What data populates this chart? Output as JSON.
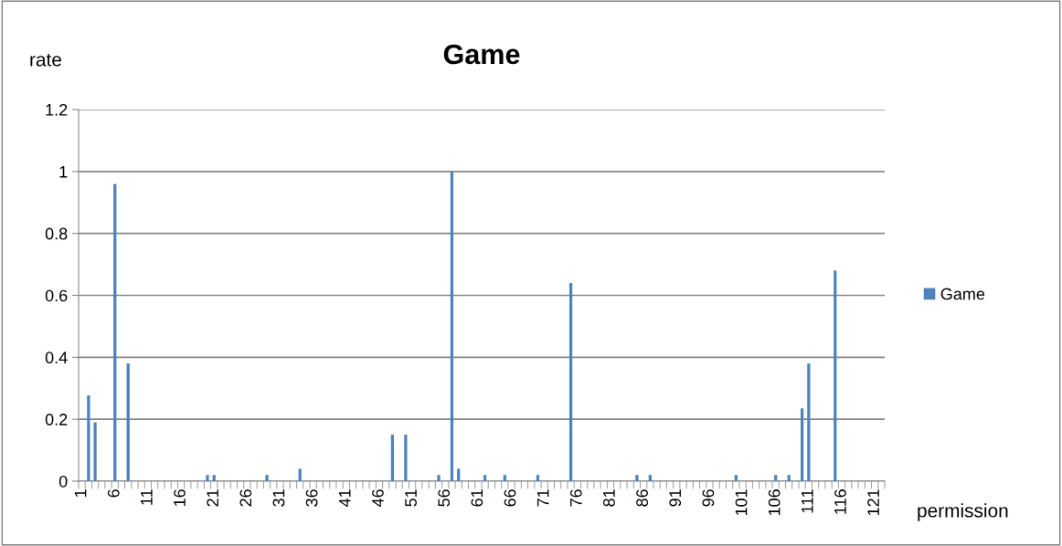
{
  "chart_data": {
    "type": "bar",
    "title": "Game",
    "xlabel": "permission",
    "ylabel": "rate",
    "categories": [
      "1",
      null,
      null,
      null,
      null,
      "6",
      null,
      null,
      null,
      null,
      "11",
      null,
      null,
      null,
      null,
      "16",
      null,
      null,
      null,
      null,
      "21",
      null,
      null,
      null,
      null,
      "26",
      null,
      null,
      null,
      null,
      "31",
      null,
      null,
      null,
      null,
      "36",
      null,
      null,
      null,
      null,
      "41",
      null,
      null,
      null,
      null,
      "46",
      null,
      null,
      null,
      null,
      "51",
      null,
      null,
      null,
      null,
      "56",
      null,
      null,
      null,
      null,
      "61",
      null,
      null,
      null,
      null,
      "66",
      null,
      null,
      null,
      null,
      "71",
      null,
      null,
      null,
      null,
      "76",
      null,
      null,
      null,
      null,
      "81",
      null,
      null,
      null,
      null,
      "86",
      null,
      null,
      null,
      null,
      "91",
      null,
      null,
      null,
      null,
      "96",
      null,
      null,
      null,
      null,
      "101",
      null,
      null,
      null,
      null,
      "106",
      null,
      null,
      null,
      null,
      "111",
      null,
      null,
      null,
      null,
      "116",
      null,
      null,
      null,
      null,
      "121",
      null
    ],
    "series": [
      {
        "name": "Game",
        "color": "#4f81bd",
        "values": [
          0,
          0.277,
          0.19,
          0,
          0,
          0.96,
          0,
          0.38,
          0,
          0,
          0,
          0,
          0,
          0,
          0,
          0,
          0,
          0,
          0,
          0.02,
          0.02,
          0,
          0,
          0,
          0,
          0,
          0,
          0,
          0.02,
          0,
          0,
          0,
          0,
          0.04,
          0,
          0,
          0,
          0,
          0,
          0,
          0,
          0,
          0,
          0,
          0,
          0,
          0,
          0.15,
          0,
          0.15,
          0,
          0,
          0,
          0,
          0.02,
          0,
          1.0,
          0.04,
          0,
          0,
          0,
          0.02,
          0,
          0,
          0.02,
          0,
          0,
          0,
          0,
          0.02,
          0,
          0,
          0,
          0,
          0.64,
          0,
          0,
          0,
          0,
          0,
          0,
          0,
          0,
          0,
          0.02,
          0,
          0.02,
          0,
          0,
          0,
          0,
          0,
          0,
          0,
          0,
          0,
          0,
          0,
          0,
          0.02,
          0,
          0,
          0,
          0,
          0,
          0.02,
          0,
          0.02,
          0,
          0.235,
          0.38,
          0,
          0,
          0,
          0.68,
          0,
          0,
          0,
          0,
          0,
          0,
          0
        ]
      }
    ],
    "ylim": [
      0,
      1.2
    ],
    "yticks": [
      0,
      0.2,
      0.4,
      0.6,
      0.8,
      1,
      1.2
    ],
    "grid": "y",
    "legend": "right"
  }
}
